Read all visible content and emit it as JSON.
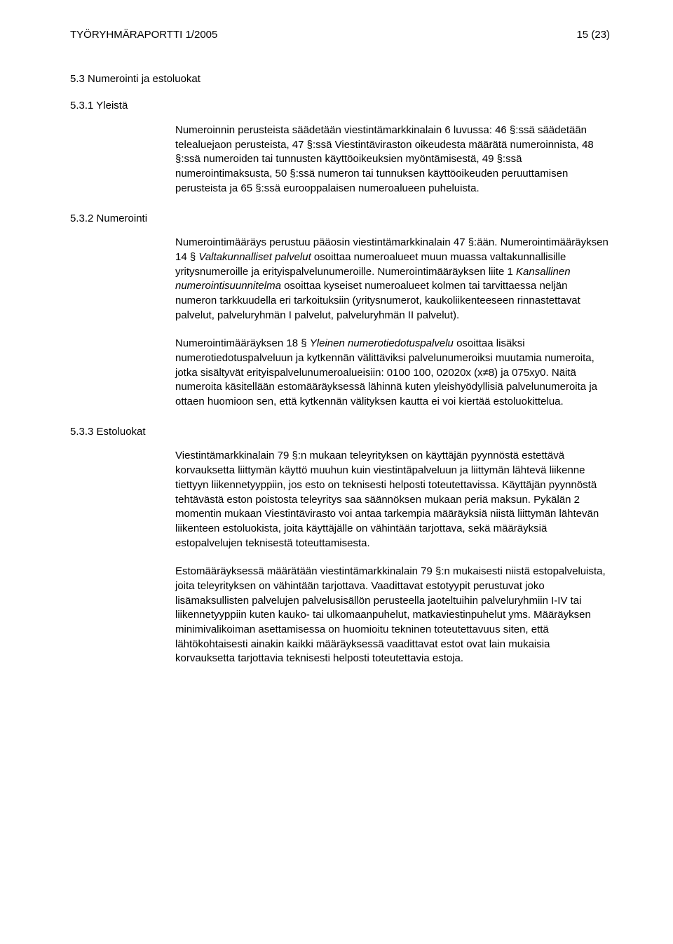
{
  "header": {
    "left": "TYÖRYHMÄRAPORTTI 1/2005",
    "right": "15 (23)"
  },
  "section_5_3": {
    "heading": "5.3 Numerointi ja estoluokat"
  },
  "section_5_3_1": {
    "heading": "5.3.1 Yleistä",
    "para1": "Numeroinnin perusteista säädetään viestintämarkkinalain 6 luvussa: 46 §:ssä säädetään telealuejaon perusteista, 47 §:ssä Viestintäviraston oikeudesta määrätä numeroinnista, 48 §:ssä numeroiden tai tunnusten käyttöoikeuksien myöntämisestä, 49 §:ssä numerointimaksusta, 50 §:ssä numeron tai tunnuksen käyttöoikeuden peruuttamisen perusteista ja 65 §:ssä eurooppalaisen numeroalueen puheluista."
  },
  "section_5_3_2": {
    "heading": "5.3.2 Numerointi",
    "para1_a": "Numerointimääräys perustuu pääosin viestintämarkkinalain 47 §:ään. Numerointimääräyksen 14 § ",
    "para1_italic1": "Valtakunnalliset palvelut",
    "para1_b": " osoittaa numeroalueet muun muassa valtakunnallisille yritysnumeroille ja erityispalvelunumeroille. Numerointimääräyksen liite 1 ",
    "para1_italic2": "Kansallinen numerointisuunnitelma",
    "para1_c": " osoittaa kyseiset numeroalueet kolmen tai tarvittaessa neljän numeron tarkkuudella eri tarkoituksiin (yritysnumerot, kaukoliikenteeseen rinnastettavat palvelut, palveluryhmän I palvelut, palveluryhmän II palvelut).",
    "para2_a": "Numerointimääräyksen 18 § ",
    "para2_italic": "Yleinen numerotiedotuspalvelu",
    "para2_b": " osoittaa lisäksi numerotiedotuspalveluun ja kytkennän välittäviksi palvelunumeroiksi muutamia numeroita, jotka sisältyvät erityispalvelunumeroalueisiin: 0100 100, 02020x (x≠8) ja 075xy0. Näitä numeroita käsitellään estomääräyksessä lähinnä kuten yleishyödyllisiä palvelunumeroita ja ottaen huomioon sen, että kytkennän välityksen kautta ei voi kiertää estoluokittelua."
  },
  "section_5_3_3": {
    "heading": "5.3.3 Estoluokat",
    "para1": "Viestintämarkkinalain 79 §:n mukaan teleyrityksen on käyttäjän pyynnöstä estettävä korvauksetta liittymän käyttö muuhun kuin viestintäpalveluun ja liittymän lähtevä liikenne tiettyyn liikennetyyppiin, jos esto on teknisesti helposti toteutettavissa. Käyttäjän pyynnöstä tehtävästä eston poistosta teleyritys saa säännöksen mukaan periä maksun. Pykälän 2 momentin mukaan Viestintävirasto voi antaa tarkempia määräyksiä niistä liittymän lähtevän liikenteen estoluokista, joita käyttäjälle on vähintään tarjottava, sekä määräyksiä estopalvelujen teknisestä toteuttamisesta.",
    "para2": "Estomääräyksessä määrätään viestintämarkkinalain 79 §:n mukaisesti niistä estopalveluista, joita teleyrityksen on vähintään tarjottava. Vaadittavat estotyypit perustuvat joko lisämaksullisten palvelujen palvelusisällön perusteella jaoteltuihin palveluryhmiin I-IV tai liikennetyyppiin kuten kauko- tai ulkomaanpuhelut, matkaviestinpuhelut yms. Määräyksen minimivalikoiman asettamisessa on huomioitu tekninen toteutettavuus siten, että lähtökohtaisesti ainakin kaikki määräyksessä vaadittavat estot ovat lain mukaisia korvauksetta tarjottavia teknisesti helposti toteutettavia estoja."
  }
}
